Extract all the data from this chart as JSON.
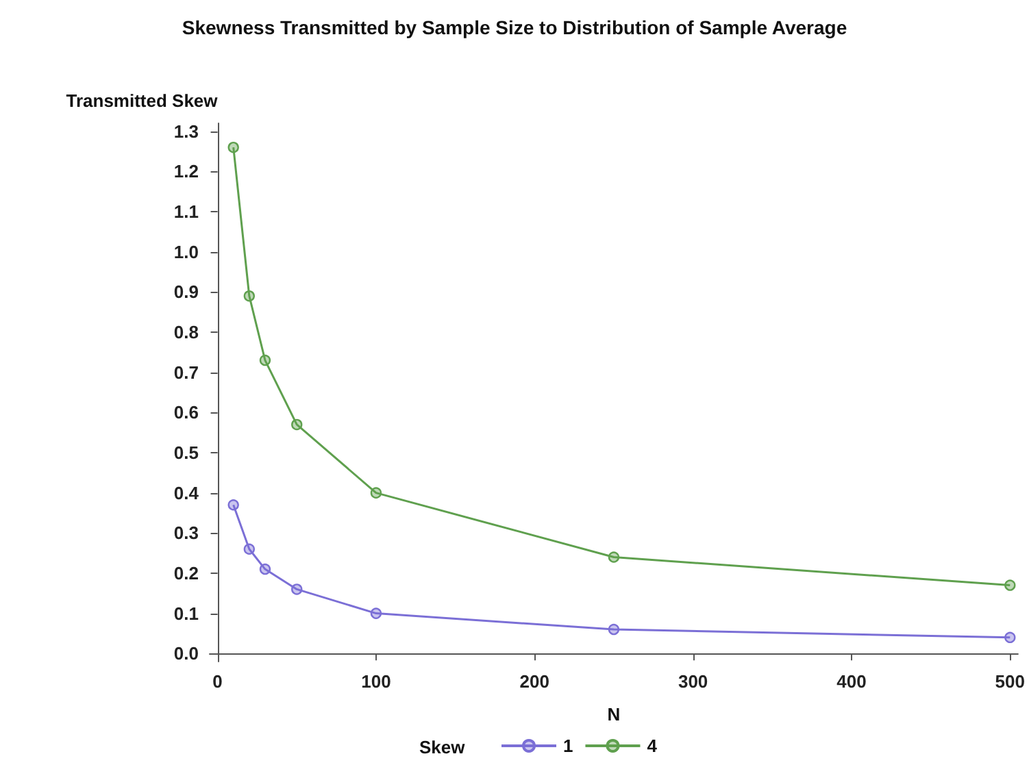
{
  "chart_data": {
    "type": "line",
    "title": "Skewness Transmitted by Sample Size to Distribution of Sample Average",
    "xlabel": "N",
    "ylabel": "Transmitted Skew",
    "legend_title": "Skew",
    "x": [
      10,
      20,
      30,
      50,
      100,
      250,
      500
    ],
    "series": [
      {
        "name": "1",
        "color": "#7b6fd6",
        "values": [
          0.37,
          0.26,
          0.21,
          0.16,
          0.1,
          0.06,
          0.04
        ]
      },
      {
        "name": "4",
        "color": "#5fa04e",
        "values": [
          1.26,
          0.89,
          0.73,
          0.57,
          0.4,
          0.24,
          0.17
        ]
      }
    ],
    "xlim": [
      -5,
      505
    ],
    "xticks": [
      0,
      100,
      200,
      300,
      400,
      500
    ],
    "ylim": [
      -0.02,
      1.32
    ],
    "yticks": [
      {
        "value": 0,
        "label": "0.0"
      },
      {
        "value": 0.1,
        "label": "0.1"
      },
      {
        "value": 0.2,
        "label": "0.2"
      },
      {
        "value": 0.3,
        "label": "0.3"
      },
      {
        "value": 0.4,
        "label": "0.4"
      },
      {
        "value": 0.5,
        "label": "0.5"
      },
      {
        "value": 0.6,
        "label": "0.6"
      },
      {
        "value": 0.7,
        "label": "0.7"
      },
      {
        "value": 0.8,
        "label": "0.8"
      },
      {
        "value": 0.9,
        "label": "0.9"
      },
      {
        "value": 1.0,
        "label": "1.0"
      },
      {
        "value": 1.1,
        "label": "1.1"
      },
      {
        "value": 1.2,
        "label": "1.2"
      },
      {
        "value": 1.3,
        "label": "1.3"
      }
    ],
    "grid": false,
    "legend": "bottom",
    "marker": "circle",
    "line_style": "solid"
  }
}
